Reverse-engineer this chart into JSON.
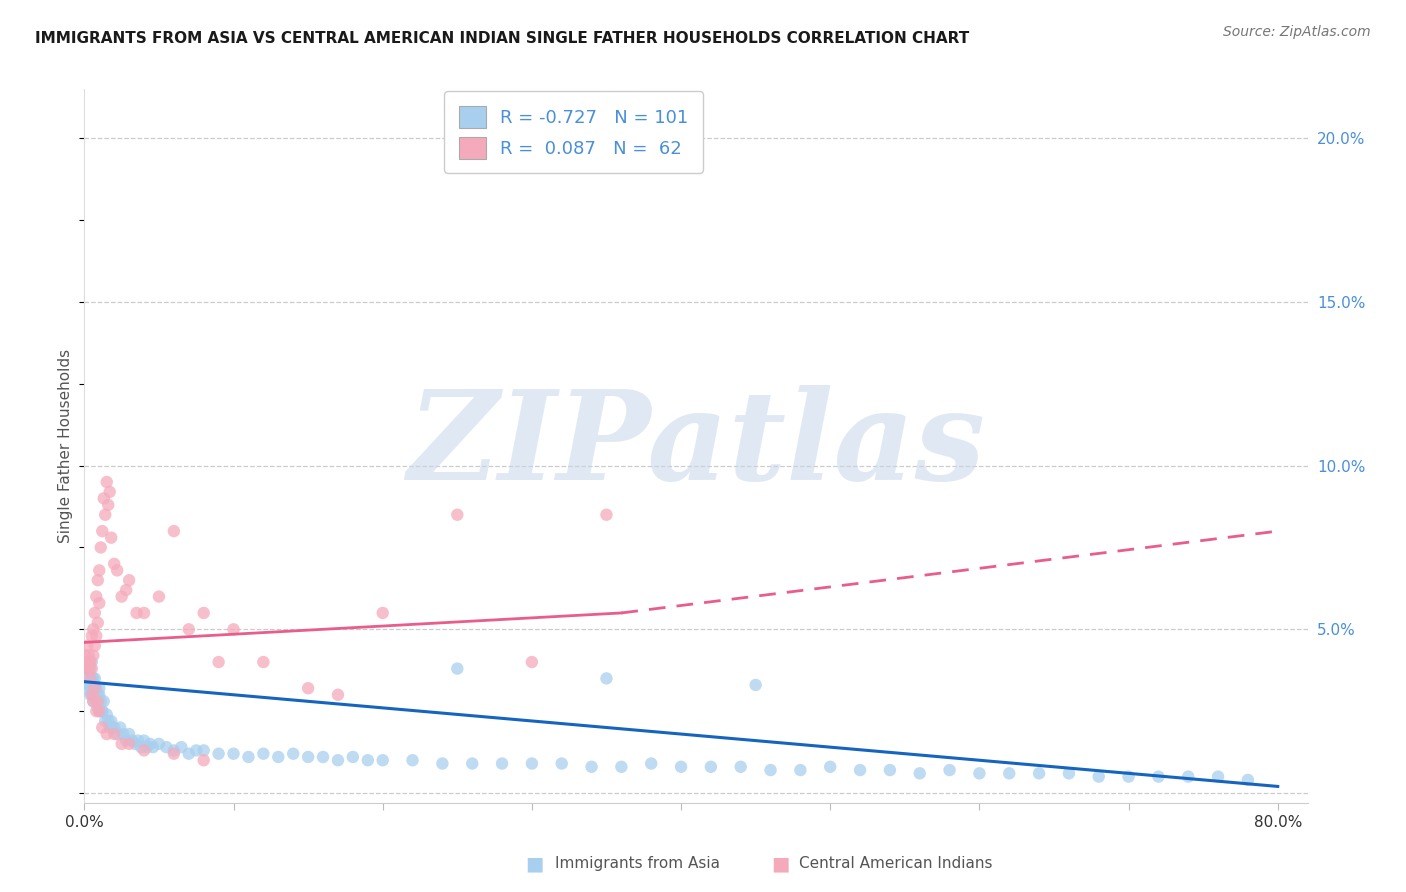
{
  "title": "IMMIGRANTS FROM ASIA VS CENTRAL AMERICAN INDIAN SINGLE FATHER HOUSEHOLDS CORRELATION CHART",
  "source": "Source: ZipAtlas.com",
  "ylabel": "Single Father Households",
  "xlim": [
    0.0,
    0.82
  ],
  "ylim": [
    -0.003,
    0.215
  ],
  "right_yticks": [
    0.0,
    0.05,
    0.1,
    0.15,
    0.2
  ],
  "right_ytick_labels": [
    "",
    "5.0%",
    "10.0%",
    "15.0%",
    "20.0%"
  ],
  "xticks": [
    0.0,
    0.1,
    0.2,
    0.3,
    0.4,
    0.5,
    0.6,
    0.7,
    0.8
  ],
  "xtick_labels": [
    "0.0%",
    "",
    "",
    "",
    "",
    "",
    "",
    "",
    "80.0%"
  ],
  "legend_blue_r": "-0.727",
  "legend_blue_n": "101",
  "legend_pink_r": "0.087",
  "legend_pink_n": "62",
  "blue_scatter_color": "#A8CFEE",
  "pink_scatter_color": "#F5AABB",
  "blue_line_color": "#1565C0",
  "pink_line_color": "#E85D8A",
  "right_axis_color": "#4A90D9",
  "legend_text_color": "#4A90D9",
  "watermark": "ZIPatlas",
  "watermark_zip_color": "#C8D8EA",
  "watermark_atlas_color": "#A0B8CC",
  "title_fontsize": 11,
  "source_fontsize": 10,
  "blue_scatter_x": [
    0.001,
    0.002,
    0.003,
    0.003,
    0.004,
    0.004,
    0.005,
    0.005,
    0.005,
    0.006,
    0.006,
    0.007,
    0.007,
    0.008,
    0.008,
    0.009,
    0.009,
    0.01,
    0.01,
    0.011,
    0.012,
    0.013,
    0.014,
    0.015,
    0.016,
    0.017,
    0.018,
    0.019,
    0.02,
    0.022,
    0.024,
    0.026,
    0.028,
    0.03,
    0.032,
    0.034,
    0.036,
    0.038,
    0.04,
    0.042,
    0.044,
    0.046,
    0.05,
    0.055,
    0.06,
    0.065,
    0.07,
    0.075,
    0.08,
    0.09,
    0.1,
    0.11,
    0.12,
    0.13,
    0.14,
    0.15,
    0.16,
    0.17,
    0.18,
    0.19,
    0.2,
    0.22,
    0.24,
    0.26,
    0.28,
    0.3,
    0.32,
    0.34,
    0.36,
    0.38,
    0.4,
    0.42,
    0.44,
    0.46,
    0.48,
    0.5,
    0.52,
    0.54,
    0.56,
    0.58,
    0.6,
    0.62,
    0.64,
    0.66,
    0.68,
    0.7,
    0.72,
    0.74,
    0.76,
    0.78,
    0.003,
    0.004,
    0.006,
    0.007,
    0.008,
    0.009,
    0.01,
    0.012,
    0.25,
    0.35,
    0.45
  ],
  "blue_scatter_y": [
    0.038,
    0.036,
    0.033,
    0.04,
    0.03,
    0.038,
    0.032,
    0.035,
    0.04,
    0.028,
    0.033,
    0.03,
    0.035,
    0.028,
    0.032,
    0.026,
    0.03,
    0.025,
    0.032,
    0.028,
    0.025,
    0.028,
    0.022,
    0.024,
    0.022,
    0.02,
    0.022,
    0.02,
    0.02,
    0.018,
    0.02,
    0.018,
    0.016,
    0.018,
    0.016,
    0.015,
    0.016,
    0.014,
    0.016,
    0.014,
    0.015,
    0.014,
    0.015,
    0.014,
    0.013,
    0.014,
    0.012,
    0.013,
    0.013,
    0.012,
    0.012,
    0.011,
    0.012,
    0.011,
    0.012,
    0.011,
    0.011,
    0.01,
    0.011,
    0.01,
    0.01,
    0.01,
    0.009,
    0.009,
    0.009,
    0.009,
    0.009,
    0.008,
    0.008,
    0.009,
    0.008,
    0.008,
    0.008,
    0.007,
    0.007,
    0.008,
    0.007,
    0.007,
    0.006,
    0.007,
    0.006,
    0.006,
    0.006,
    0.006,
    0.005,
    0.005,
    0.005,
    0.005,
    0.005,
    0.004,
    0.033,
    0.031,
    0.035,
    0.032,
    0.03,
    0.028,
    0.03,
    0.025,
    0.038,
    0.035,
    0.033
  ],
  "pink_scatter_x": [
    0.001,
    0.001,
    0.002,
    0.002,
    0.003,
    0.003,
    0.004,
    0.004,
    0.005,
    0.005,
    0.006,
    0.006,
    0.007,
    0.007,
    0.008,
    0.008,
    0.009,
    0.009,
    0.01,
    0.01,
    0.011,
    0.012,
    0.013,
    0.014,
    0.015,
    0.016,
    0.017,
    0.018,
    0.02,
    0.022,
    0.025,
    0.028,
    0.03,
    0.035,
    0.04,
    0.05,
    0.06,
    0.07,
    0.08,
    0.09,
    0.1,
    0.12,
    0.15,
    0.17,
    0.2,
    0.25,
    0.3,
    0.35,
    0.005,
    0.006,
    0.007,
    0.008,
    0.009,
    0.01,
    0.012,
    0.015,
    0.02,
    0.025,
    0.03,
    0.04,
    0.06,
    0.08
  ],
  "pink_scatter_y": [
    0.042,
    0.038,
    0.045,
    0.04,
    0.038,
    0.042,
    0.04,
    0.035,
    0.048,
    0.038,
    0.05,
    0.042,
    0.055,
    0.045,
    0.06,
    0.048,
    0.065,
    0.052,
    0.068,
    0.058,
    0.075,
    0.08,
    0.09,
    0.085,
    0.095,
    0.088,
    0.092,
    0.078,
    0.07,
    0.068,
    0.06,
    0.062,
    0.065,
    0.055,
    0.055,
    0.06,
    0.08,
    0.05,
    0.055,
    0.04,
    0.05,
    0.04,
    0.032,
    0.03,
    0.055,
    0.085,
    0.04,
    0.085,
    0.03,
    0.028,
    0.032,
    0.025,
    0.028,
    0.025,
    0.02,
    0.018,
    0.018,
    0.015,
    0.015,
    0.013,
    0.012,
    0.01
  ],
  "pink_line_start_x": 0.0,
  "pink_line_start_y": 0.046,
  "pink_line_solid_end_x": 0.36,
  "pink_line_solid_end_y": 0.055,
  "pink_line_dash_end_x": 0.8,
  "pink_line_dash_end_y": 0.08,
  "blue_line_start_x": 0.0,
  "blue_line_start_y": 0.034,
  "blue_line_end_x": 0.8,
  "blue_line_end_y": 0.002
}
